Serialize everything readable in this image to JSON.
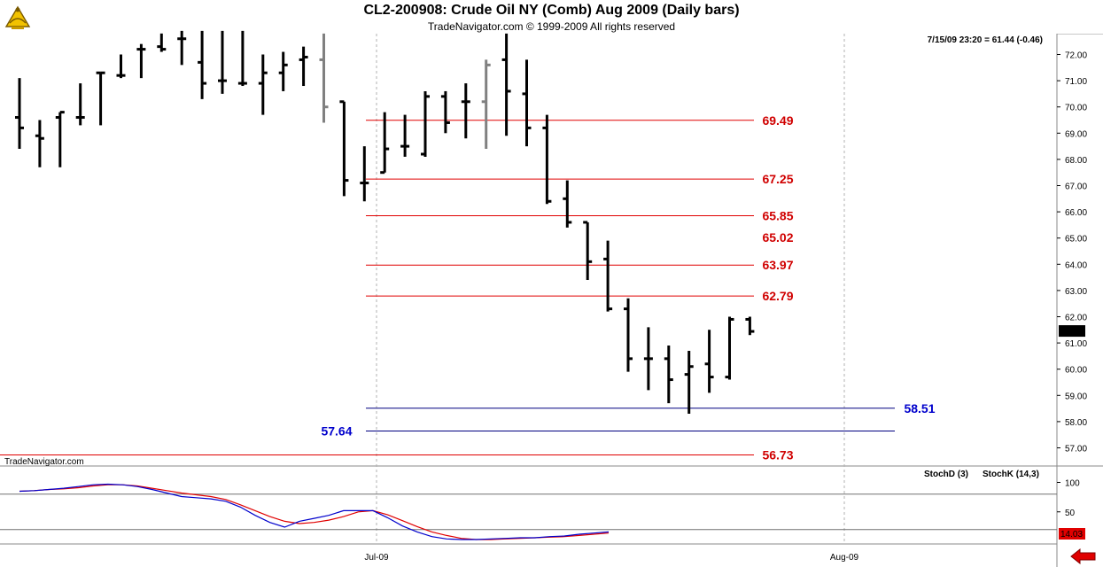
{
  "header": {
    "title": "CL2-200908:  Crude Oil NY (Comb) Aug 2009  (Daily bars)",
    "subtitle": "TradeNavigator.com © 1999-2009 All rights reserved",
    "last_quote": "7/15/09 23:20 = 61.44 (-0.46)",
    "watermark": "TradeNavigator.com"
  },
  "colors": {
    "price_bar": "#000000",
    "prior_bar": "#808080",
    "resistance_line": "#e00000",
    "resistance_text": "#d00000",
    "support_line": "#000080",
    "support_text": "#0000cc",
    "stoch_d": "#e00000",
    "stoch_k": "#0000cc",
    "current_price_tag": "#000000",
    "stoch_value_tag": "#e00000"
  },
  "icons": {
    "logo": "sextant-icon",
    "scroll": "left-arrow-icon"
  },
  "chart_data": [
    {
      "type": "ohlc-bar",
      "title": "CL2-200908:  Crude Oil NY (Comb) Aug 2009  (Daily bars)",
      "x_tick_labels": [
        "Jul-09",
        "Aug-09"
      ],
      "y_tick_labels": [
        "57.00",
        "58.00",
        "59.00",
        "60.00",
        "61.00",
        "62.00",
        "63.00",
        "64.00",
        "65.00",
        "66.00",
        "67.00",
        "68.00",
        "69.00",
        "70.00",
        "71.00",
        "72.00"
      ],
      "ylim": [
        56.4,
        73.1
      ],
      "grid": "vertical dashed at month starts",
      "current_price": "61.44",
      "price_levels": [
        {
          "label": "69.49",
          "value": 69.49,
          "color": "red",
          "line": true
        },
        {
          "label": "67.25",
          "value": 67.25,
          "color": "red",
          "line": true
        },
        {
          "label": "65.85",
          "value": 65.85,
          "color": "red",
          "line": true
        },
        {
          "label": "65.02",
          "value": 65.02,
          "color": "red",
          "line": false
        },
        {
          "label": "63.97",
          "value": 63.97,
          "color": "red",
          "line": true
        },
        {
          "label": "62.79",
          "value": 62.79,
          "color": "red",
          "line": true
        },
        {
          "label": "58.51",
          "value": 58.51,
          "color": "blue",
          "line": true
        },
        {
          "label": "57.64",
          "value": 57.64,
          "color": "blue",
          "line": true
        },
        {
          "label": "56.73",
          "value": 56.73,
          "color": "red",
          "line": true
        }
      ],
      "bars": [
        {
          "o": 69.6,
          "h": 71.1,
          "l": 68.4,
          "c": 69.2,
          "shade": "black"
        },
        {
          "o": 68.9,
          "h": 69.5,
          "l": 67.7,
          "c": 68.8,
          "shade": "black"
        },
        {
          "o": 69.6,
          "h": 69.8,
          "l": 67.7,
          "c": 69.8,
          "shade": "black"
        },
        {
          "o": 69.6,
          "h": 70.9,
          "l": 69.3,
          "c": 69.6,
          "shade": "black"
        },
        {
          "o": 71.3,
          "h": 71.3,
          "l": 69.3,
          "c": 71.3,
          "shade": "black"
        },
        {
          "o": 71.2,
          "h": 72.0,
          "l": 71.1,
          "c": 71.2,
          "shade": "black"
        },
        {
          "o": 72.2,
          "h": 72.4,
          "l": 71.1,
          "c": 72.2,
          "shade": "black"
        },
        {
          "o": 72.3,
          "h": 72.8,
          "l": 72.1,
          "c": 72.2,
          "shade": "black"
        },
        {
          "o": 72.6,
          "h": 72.9,
          "l": 71.6,
          "c": 72.6,
          "shade": "black"
        },
        {
          "o": 71.7,
          "h": 72.9,
          "l": 70.3,
          "c": 70.9,
          "shade": "black"
        },
        {
          "o": 71.0,
          "h": 72.9,
          "l": 70.5,
          "c": 71.0,
          "shade": "black"
        },
        {
          "o": 70.9,
          "h": 72.9,
          "l": 70.8,
          "c": 70.9,
          "shade": "black"
        },
        {
          "o": 70.9,
          "h": 72.0,
          "l": 69.7,
          "c": 71.3,
          "shade": "black"
        },
        {
          "o": 71.3,
          "h": 72.1,
          "l": 70.6,
          "c": 71.6,
          "shade": "black"
        },
        {
          "o": 71.8,
          "h": 72.3,
          "l": 70.8,
          "c": 71.9,
          "shade": "black"
        },
        {
          "o": 71.8,
          "h": 72.8,
          "l": 69.4,
          "c": 70.0,
          "shade": "gray"
        },
        {
          "o": 70.2,
          "h": 70.2,
          "l": 66.6,
          "c": 67.2,
          "shade": "black"
        },
        {
          "o": 67.1,
          "h": 68.5,
          "l": 66.4,
          "c": 67.1,
          "shade": "black"
        },
        {
          "o": 67.5,
          "h": 69.8,
          "l": 67.5,
          "c": 68.4,
          "shade": "black"
        },
        {
          "o": 68.5,
          "h": 69.7,
          "l": 68.1,
          "c": 68.5,
          "shade": "black"
        },
        {
          "o": 68.2,
          "h": 70.6,
          "l": 68.1,
          "c": 70.4,
          "shade": "black"
        },
        {
          "o": 70.4,
          "h": 70.6,
          "l": 69.0,
          "c": 69.4,
          "shade": "black"
        },
        {
          "o": 70.2,
          "h": 70.9,
          "l": 68.8,
          "c": 70.2,
          "shade": "black"
        },
        {
          "o": 70.2,
          "h": 71.8,
          "l": 68.4,
          "c": 71.6,
          "shade": "gray"
        },
        {
          "o": 71.8,
          "h": 72.8,
          "l": 68.9,
          "c": 70.6,
          "shade": "black"
        },
        {
          "o": 70.5,
          "h": 71.8,
          "l": 68.5,
          "c": 69.2,
          "shade": "black"
        },
        {
          "o": 69.2,
          "h": 69.7,
          "l": 66.3,
          "c": 66.4,
          "shade": "black"
        },
        {
          "o": 66.5,
          "h": 67.2,
          "l": 65.4,
          "c": 65.6,
          "shade": "black"
        },
        {
          "o": 65.6,
          "h": 65.6,
          "l": 63.4,
          "c": 64.1,
          "shade": "black"
        },
        {
          "o": 64.2,
          "h": 64.9,
          "l": 62.2,
          "c": 62.3,
          "shade": "black"
        },
        {
          "o": 62.3,
          "h": 62.7,
          "l": 59.9,
          "c": 60.4,
          "shade": "black"
        },
        {
          "o": 60.4,
          "h": 61.6,
          "l": 59.2,
          "c": 60.4,
          "shade": "black"
        },
        {
          "o": 60.4,
          "h": 60.9,
          "l": 58.7,
          "c": 59.6,
          "shade": "black"
        },
        {
          "o": 59.8,
          "h": 60.7,
          "l": 58.3,
          "c": 60.1,
          "shade": "black"
        },
        {
          "o": 60.2,
          "h": 61.5,
          "l": 59.1,
          "c": 59.7,
          "shade": "black"
        },
        {
          "o": 59.7,
          "h": 62.0,
          "l": 59.6,
          "c": 61.9,
          "shade": "black"
        },
        {
          "o": 61.9,
          "h": 62.0,
          "l": 61.3,
          "c": 61.44,
          "shade": "black"
        }
      ]
    },
    {
      "type": "line",
      "title": "StochD (3) / StochK (14,3)",
      "ylim": [
        0,
        110
      ],
      "y_tick_labels": [
        "50",
        "100"
      ],
      "reference_lines": [
        80,
        20
      ],
      "current_value": "14.03",
      "series": [
        {
          "name": "StochD (3)",
          "color": "red",
          "values": [
            85,
            86,
            88,
            89,
            91,
            94,
            96,
            96,
            94,
            90,
            86,
            82,
            79,
            76,
            71,
            62,
            52,
            42,
            34,
            30,
            32,
            36,
            42,
            50,
            52,
            45,
            35,
            25,
            16,
            10,
            5,
            3,
            3,
            4,
            5,
            6,
            7,
            8,
            10,
            12,
            14
          ]
        },
        {
          "name": "StochK (14,3)",
          "color": "blue",
          "values": [
            85,
            86,
            88,
            90,
            93,
            96,
            97,
            96,
            93,
            88,
            82,
            76,
            74,
            72,
            68,
            58,
            44,
            32,
            24,
            34,
            39,
            44,
            52,
            52,
            52,
            40,
            26,
            16,
            8,
            4,
            3,
            3,
            4,
            5,
            6,
            6,
            8,
            9,
            12,
            14,
            16
          ]
        }
      ],
      "x_tick_labels": [
        "Jul-09",
        "Aug-09"
      ]
    }
  ]
}
